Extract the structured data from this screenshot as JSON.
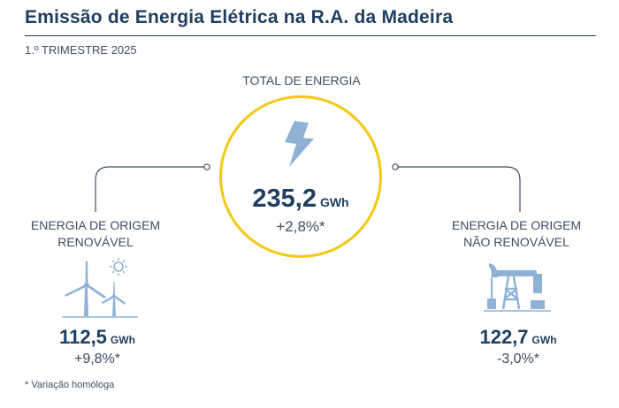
{
  "header": {
    "title": "Emissão de Energia Elétrica na R.A. da Madeira",
    "subtitle": "1.º TRIMESTRE 2025"
  },
  "total": {
    "label": "TOTAL DE ENERGIA",
    "value": "235,2",
    "unit": "GWh",
    "change": "+2,8%*",
    "icon": "lightning-bolt-icon"
  },
  "renewable": {
    "label_line1": "ENERGIA DE ORIGEM",
    "label_line2": "RENOVÁVEL",
    "value": "112,5",
    "unit": "GWh",
    "change": "+9,8%*",
    "icon": "wind-turbine-sun-icon"
  },
  "non_renewable": {
    "label_line1": "ENERGIA DE ORIGEM",
    "label_line2": "NÃO RENOVÁVEL",
    "value": "122,7",
    "unit": "GWh",
    "change": "-3,0%*",
    "icon": "oil-pump-icon"
  },
  "footnote": "* Variação homóloga",
  "colors": {
    "primary": "#1f3e60",
    "accent": "#f2c80f",
    "icon": "#8fb1d6"
  }
}
